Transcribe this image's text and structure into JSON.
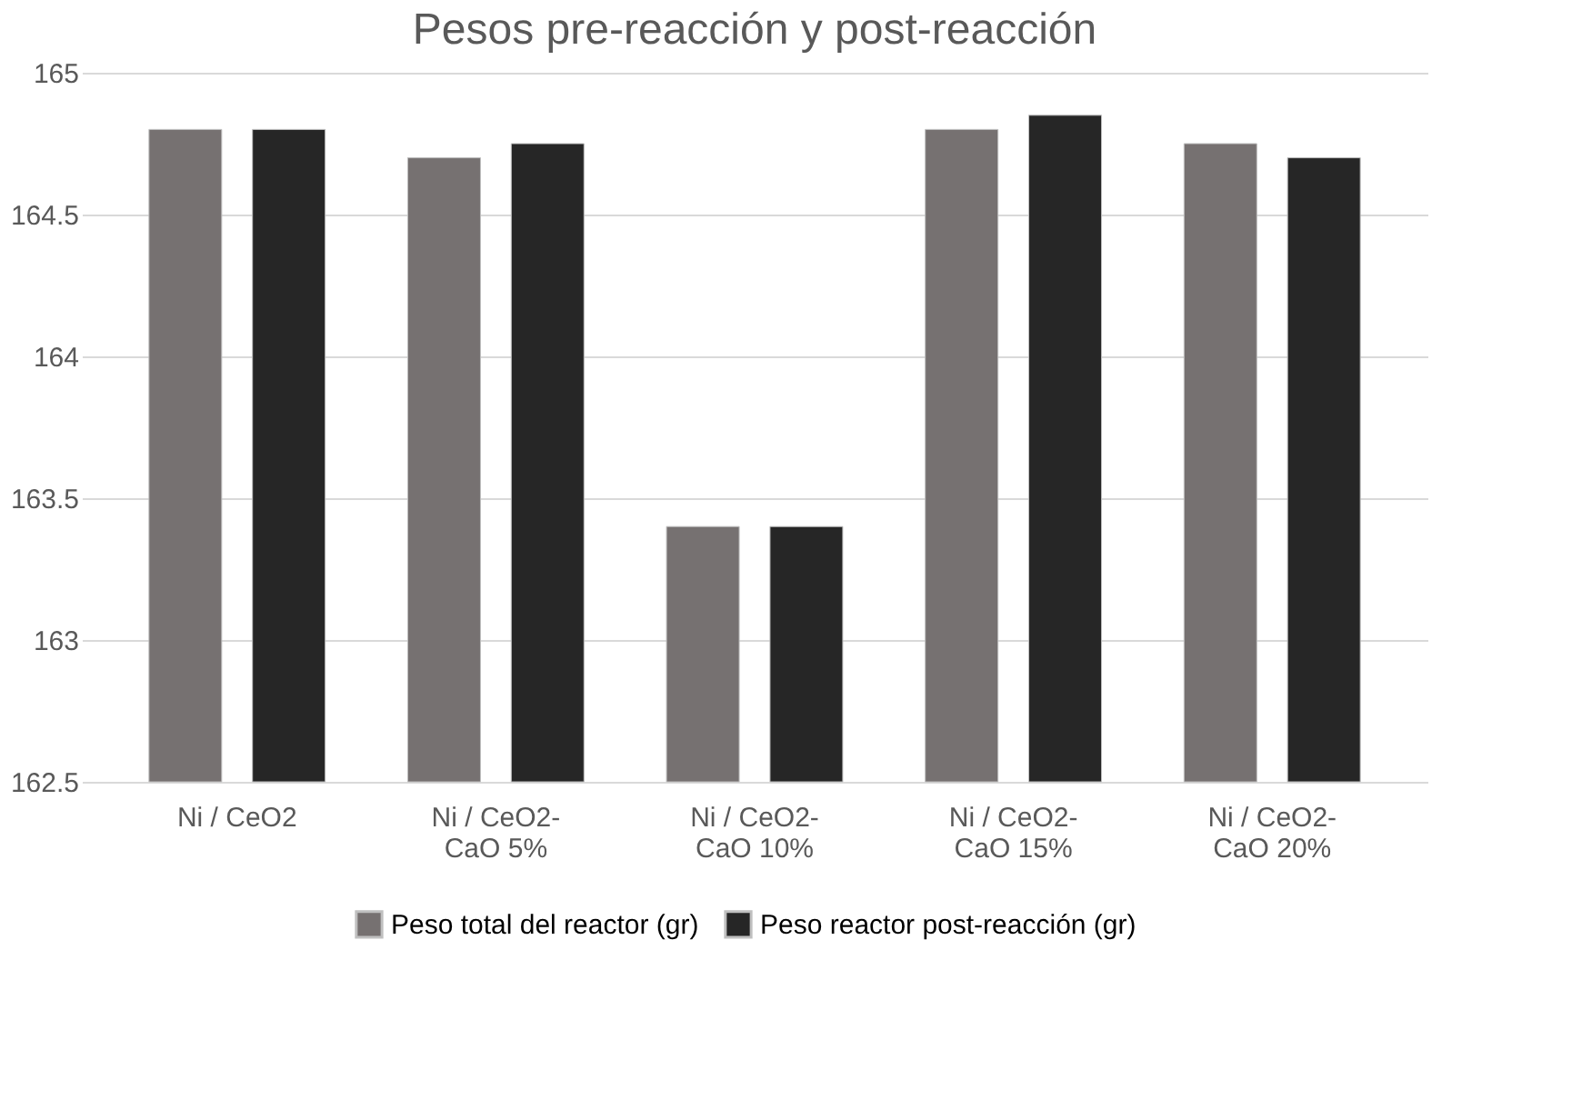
{
  "chart_data": {
    "type": "bar",
    "title": "Pesos pre-reacción y post-reacción",
    "categories": [
      "Ni / CeO2",
      "Ni / CeO2-CaO  5%",
      "Ni / CeO2-CaO  10%",
      "Ni / CeO2-CaO  15%",
      "Ni / CeO2-CaO  20%"
    ],
    "series": [
      {
        "name": "Peso total del reactor (gr)",
        "color": "#767171",
        "values": [
          164.8,
          164.7,
          163.4,
          164.8,
          164.75
        ]
      },
      {
        "name": "Peso reactor post-reacción (gr)",
        "color": "#262626",
        "values": [
          164.8,
          164.75,
          163.4,
          164.85,
          164.7
        ]
      }
    ],
    "ylim": [
      162.5,
      165
    ],
    "yticks": [
      162.5,
      163,
      163.5,
      164,
      164.5,
      165
    ],
    "grid": "y",
    "legend": "bottom"
  }
}
